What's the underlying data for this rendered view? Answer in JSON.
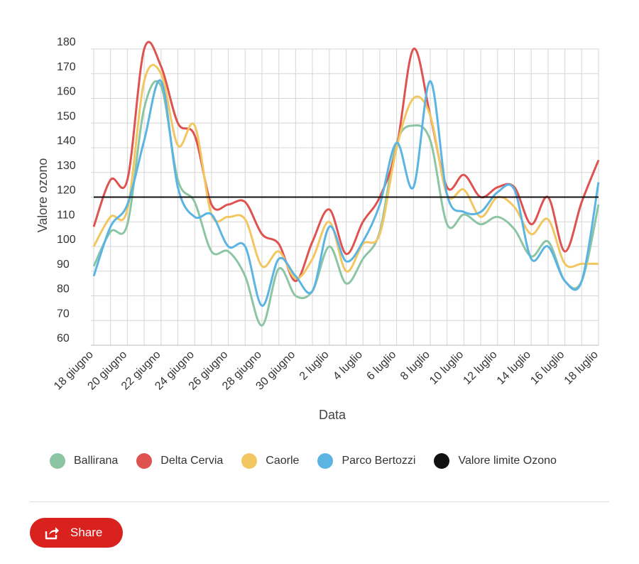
{
  "chart_data": {
    "type": "line",
    "xlabel": "Data",
    "ylabel": "Valore ozono",
    "ylim": [
      60,
      180
    ],
    "yticks": [
      60,
      70,
      80,
      90,
      100,
      110,
      120,
      130,
      140,
      150,
      160,
      170,
      180
    ],
    "grid": true,
    "legend_position": "bottom",
    "x": [
      "18 giugno",
      "19 giugno",
      "20 giugno",
      "21 giugno",
      "22 giugno",
      "23 giugno",
      "24 giugno",
      "25 giugno",
      "26 giugno",
      "27 giugno",
      "28 giugno",
      "29 giugno",
      "30 giugno",
      "1 luglio",
      "2 luglio",
      "3 luglio",
      "4 luglio",
      "5 luglio",
      "6 luglio",
      "7 luglio",
      "8 luglio",
      "9 luglio",
      "10 luglio",
      "11 luglio",
      "12 luglio",
      "13 luglio",
      "14 luglio",
      "15 luglio",
      "16 luglio",
      "17 luglio",
      "18 luglio"
    ],
    "xtick_labels": [
      "18 giugno",
      "20 giugno",
      "22 giugno",
      "24 giugno",
      "26 giugno",
      "28 giugno",
      "30 giugno",
      "2 luglio",
      "4 luglio",
      "6 luglio",
      "8 luglio",
      "10 luglio",
      "12 luglio",
      "14 luglio",
      "16 luglio",
      "18 luglio"
    ],
    "series": [
      {
        "name": "Ballirana",
        "color": "#8cc5a3",
        "values": [
          92,
          106,
          109,
          156,
          165,
          127,
          118,
          98,
          98,
          88,
          68,
          91,
          80,
          82,
          100,
          85,
          95,
          106,
          142,
          149,
          143,
          109,
          113,
          109,
          112,
          107,
          96,
          102,
          86,
          86,
          117
        ]
      },
      {
        "name": "Delta Cervia",
        "color": "#de5350",
        "values": [
          108,
          127,
          127,
          180,
          173,
          150,
          145,
          117,
          117,
          118,
          105,
          101,
          86,
          102,
          115,
          97,
          110,
          120,
          140,
          180,
          153,
          124,
          129,
          120,
          124,
          124,
          109,
          120,
          98,
          118,
          135
        ]
      },
      {
        "name": "Caorle",
        "color": "#f2c661",
        "values": [
          100,
          112,
          115,
          167,
          170,
          141,
          149,
          113,
          112,
          111,
          92,
          98,
          87,
          95,
          110,
          90,
          101,
          105,
          140,
          160,
          153,
          121,
          123,
          112,
          120,
          116,
          105,
          111,
          93,
          93,
          93
        ]
      },
      {
        "name": "Parco Bertozzi",
        "color": "#5bb4e2",
        "values": [
          88,
          108,
          117,
          143,
          167,
          124,
          112,
          113,
          100,
          100,
          76,
          95,
          88,
          82,
          108,
          94,
          102,
          117,
          142,
          124,
          167,
          121,
          114,
          114,
          122,
          123,
          95,
          100,
          86,
          86,
          126
        ]
      }
    ],
    "reference_line": {
      "name": "Valore limite Ozono",
      "value": 120,
      "color": "#111111"
    }
  },
  "share": {
    "label": "Share",
    "color": "#d9211d"
  }
}
